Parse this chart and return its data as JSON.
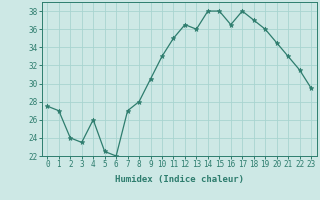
{
  "x": [
    0,
    1,
    2,
    3,
    4,
    5,
    6,
    7,
    8,
    9,
    10,
    11,
    12,
    13,
    14,
    15,
    16,
    17,
    18,
    19,
    20,
    21,
    22,
    23
  ],
  "y": [
    27.5,
    27.0,
    24.0,
    23.5,
    26.0,
    22.5,
    22.0,
    27.0,
    28.0,
    30.5,
    33.0,
    35.0,
    36.5,
    36.0,
    38.0,
    38.0,
    36.5,
    38.0,
    37.0,
    36.0,
    34.5,
    33.0,
    31.5,
    29.5
  ],
  "line_color": "#2e7d6e",
  "marker": "*",
  "marker_size": 3.5,
  "bg_color": "#cde8e5",
  "grid_color": "#a8d4d0",
  "xlabel": "Humidex (Indice chaleur)",
  "ylim": [
    22,
    39
  ],
  "xlim": [
    -0.5,
    23.5
  ],
  "yticks": [
    22,
    24,
    26,
    28,
    30,
    32,
    34,
    36,
    38
  ],
  "xticks": [
    0,
    1,
    2,
    3,
    4,
    5,
    6,
    7,
    8,
    9,
    10,
    11,
    12,
    13,
    14,
    15,
    16,
    17,
    18,
    19,
    20,
    21,
    22,
    23
  ],
  "axis_color": "#2e7d6e",
  "tick_color": "#2e7d6e",
  "label_fontsize": 6.5,
  "tick_fontsize": 5.5
}
